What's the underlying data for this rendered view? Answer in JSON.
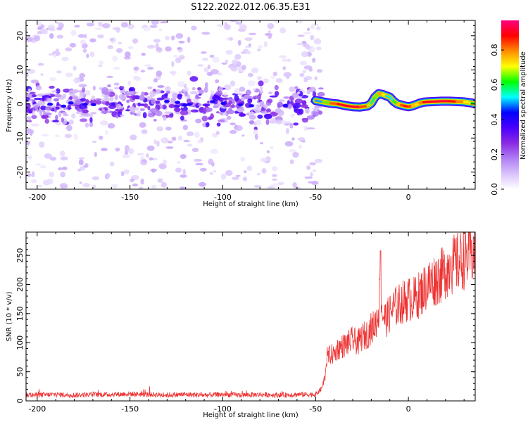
{
  "figure_title": "S122.2022.012.06.35.E31",
  "chart_data": [
    {
      "type": "heatmap",
      "title": "",
      "xlabel": "Height of straight line (km)",
      "ylabel": "Frequency (Hz)",
      "xlim": [
        -206,
        36
      ],
      "ylim": [
        -25,
        24.5
      ],
      "xticks": [
        -200,
        -150,
        -100,
        -50,
        0
      ],
      "yticks": [
        -20,
        -10,
        0,
        10,
        20
      ],
      "colorbar": {
        "label": "Normalized spectral amplitude",
        "range": [
          0.0,
          0.97
        ],
        "ticks": [
          0.0,
          0.2,
          0.4,
          0.6,
          0.8
        ],
        "colors": [
          "#ffffff",
          "#d9c3fb",
          "#b07ef5",
          "#8a2be2",
          "#4b00ff",
          "#0000ff",
          "#00ffff",
          "#00ff00",
          "#ffff00",
          "#ff8c00",
          "#ff0000",
          "#ff0080"
        ]
      },
      "segments": [
        {
          "x_range": [
            -206,
            -50
          ],
          "description": "diffuse noise",
          "band_center_hz": 0,
          "band_half_width_hz": 4,
          "peak_amplitude": 0.3
        },
        {
          "x_range": [
            -50,
            36
          ],
          "description": "coherent band",
          "band_center_hz": 0,
          "band_half_width_hz": 1,
          "peak_amplitude": 0.97
        }
      ],
      "ridge": {
        "x": [
          -50,
          -46,
          -42,
          -38,
          -34,
          -30,
          -26,
          -22,
          -20,
          -18,
          -16,
          -14,
          -12,
          -10,
          -8,
          -6,
          -4,
          -2,
          0,
          2,
          4,
          6,
          8,
          10,
          14,
          18,
          22,
          26,
          30,
          34,
          36
        ],
        "freq": [
          1.0,
          0.6,
          0.2,
          0.0,
          -0.5,
          -0.8,
          -0.9,
          -0.6,
          0.2,
          2.0,
          3.0,
          2.8,
          2.4,
          2.0,
          0.8,
          0.0,
          -0.3,
          -0.6,
          -0.8,
          -0.6,
          -0.2,
          0.2,
          0.5,
          0.6,
          0.7,
          0.8,
          0.8,
          0.7,
          0.6,
          0.3,
          0.0
        ],
        "amplitude": [
          0.45,
          0.55,
          0.75,
          0.9,
          0.9,
          0.92,
          0.92,
          0.75,
          0.6,
          0.55,
          0.75,
          0.8,
          0.6,
          0.5,
          0.55,
          0.7,
          0.8,
          0.88,
          0.9,
          0.8,
          0.7,
          0.75,
          0.85,
          0.9,
          0.92,
          0.92,
          0.9,
          0.85,
          0.75,
          0.65,
          0.55
        ]
      }
    },
    {
      "type": "line",
      "title": "",
      "xlabel": "Height of straight line (km)",
      "ylabel": "SNR (10 * v/v)",
      "xlim": [
        -206,
        36
      ],
      "ylim": [
        0,
        290
      ],
      "xticks": [
        -200,
        -150,
        -100,
        -50,
        0
      ],
      "yticks": [
        0,
        50,
        100,
        150,
        200,
        250
      ],
      "color": "#ee3333",
      "series": [
        {
          "x": [
            -206,
            -200,
            -190,
            -180,
            -170,
            -160,
            -150,
            -140,
            -130,
            -120,
            -110,
            -100,
            -90,
            -80,
            -70,
            -60,
            -50,
            -47,
            -45,
            -44,
            -42,
            -40,
            -38,
            -35,
            -32,
            -30,
            -27,
            -25,
            -22,
            -20,
            -18,
            -16,
            -15,
            -14,
            -12,
            -10,
            -8,
            -5,
            -3,
            0,
            3,
            5,
            8,
            10,
            13,
            15,
            18,
            20,
            22,
            25,
            28,
            30,
            33,
            36
          ],
          "y": [
            10,
            10,
            11,
            10,
            11,
            11,
            12,
            11,
            10,
            11,
            10,
            11,
            10,
            11,
            10,
            11,
            11,
            20,
            40,
            75,
            80,
            80,
            90,
            95,
            100,
            105,
            100,
            110,
            115,
            125,
            130,
            155,
            200,
            150,
            140,
            150,
            160,
            165,
            170,
            175,
            175,
            180,
            190,
            200,
            205,
            210,
            215,
            225,
            230,
            235,
            240,
            245,
            250,
            255
          ]
        }
      ],
      "annotations": [
        {
          "x": -15,
          "y": 258,
          "note": "spike"
        },
        {
          "x": 23,
          "y": 248,
          "note": "spike"
        }
      ]
    }
  ]
}
